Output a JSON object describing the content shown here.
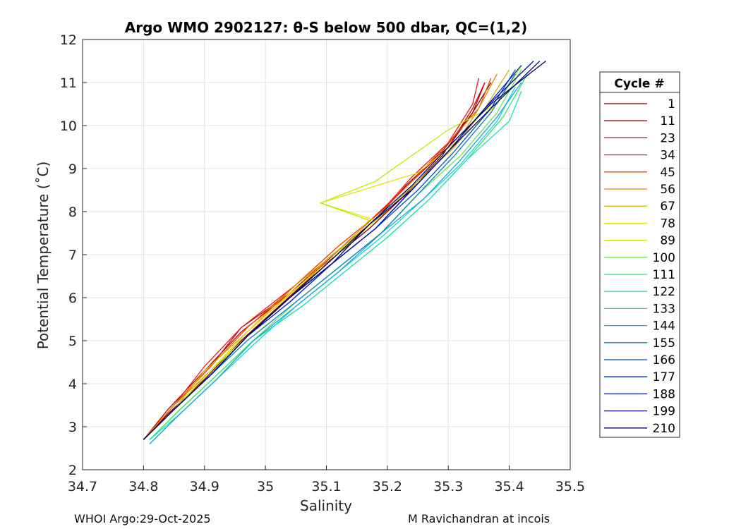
{
  "chart_data": {
    "type": "line",
    "title": "Argo WMO 2902127: θ-S below 500 dbar,  QC=(1,2)",
    "xlabel": "Salinity",
    "ylabel": "Potential Temperature (˚C)",
    "xlim": [
      34.7,
      35.5
    ],
    "ylim": [
      2,
      12
    ],
    "x_ticks": [
      "34.7",
      "34.8",
      "34.9",
      "35",
      "35.1",
      "35.2",
      "35.3",
      "35.4",
      "35.5"
    ],
    "y_ticks": [
      "2",
      "3",
      "4",
      "5",
      "6",
      "7",
      "8",
      "9",
      "10",
      "11",
      "12"
    ],
    "grid": true,
    "legend": {
      "title": "Cycle #",
      "position": "right-outside",
      "entries": [
        {
          "label": "1",
          "color": "#7f0000"
        },
        {
          "label": "11",
          "color": "#b00000"
        },
        {
          "label": "23",
          "color": "#d40000"
        },
        {
          "label": "34",
          "color": "#e31a1c"
        },
        {
          "label": "45",
          "color": "#f04a00"
        },
        {
          "label": "56",
          "color": "#e08a00"
        },
        {
          "label": "67",
          "color": "#d6b400"
        },
        {
          "label": "78",
          "color": "#e6e600"
        },
        {
          "label": "89",
          "color": "#b4f000"
        },
        {
          "label": "100",
          "color": "#66e44a"
        },
        {
          "label": "111",
          "color": "#2ee66e"
        },
        {
          "label": "122",
          "color": "#1ee0b4"
        },
        {
          "label": "133",
          "color": "#19d2e6"
        },
        {
          "label": "144",
          "color": "#10a8d8"
        },
        {
          "label": "155",
          "color": "#0b7dbf"
        },
        {
          "label": "166",
          "color": "#0a50b8"
        },
        {
          "label": "177",
          "color": "#0025cc"
        },
        {
          "label": "188",
          "color": "#000fa8"
        },
        {
          "label": "199",
          "color": "#00007f"
        },
        {
          "label": "210",
          "color": "#00005a"
        }
      ]
    },
    "series": [
      {
        "name": "1",
        "x": [
          34.8,
          34.84,
          34.9,
          34.96,
          35.03,
          35.1,
          35.17,
          35.23,
          35.29,
          35.34,
          35.37
        ],
        "y": [
          2.7,
          3.3,
          4.1,
          5.0,
          5.9,
          6.8,
          7.6,
          8.4,
          9.3,
          10.3,
          11.0
        ]
      },
      {
        "name": "11",
        "x": [
          34.8,
          34.84,
          34.9,
          34.96,
          35.04,
          35.11,
          35.18,
          35.23,
          35.29,
          35.34,
          35.36
        ],
        "y": [
          2.7,
          3.4,
          4.3,
          5.2,
          6.1,
          7.0,
          7.8,
          8.6,
          9.4,
          10.3,
          11.0
        ]
      },
      {
        "name": "23",
        "x": [
          34.8,
          34.85,
          34.91,
          34.96,
          35.05,
          35.12,
          35.18,
          35.24,
          35.3,
          35.34,
          35.36
        ],
        "y": [
          2.7,
          3.5,
          4.4,
          5.3,
          6.2,
          7.1,
          7.9,
          8.7,
          9.5,
          10.4,
          11.0
        ]
      },
      {
        "name": "34",
        "x": [
          34.8,
          34.85,
          34.9,
          34.96,
          35.05,
          35.12,
          35.19,
          35.24,
          35.3,
          35.34,
          35.35
        ],
        "y": [
          2.7,
          3.5,
          4.4,
          5.3,
          6.3,
          7.2,
          8.0,
          8.8,
          9.6,
          10.5,
          11.1
        ]
      },
      {
        "name": "45",
        "x": [
          34.8,
          34.85,
          34.91,
          34.97,
          35.05,
          35.12,
          35.19,
          35.24,
          35.3,
          35.35,
          35.37
        ],
        "y": [
          2.7,
          3.5,
          4.4,
          5.3,
          6.3,
          7.2,
          8.0,
          8.7,
          9.6,
          10.4,
          11.1
        ]
      },
      {
        "name": "56",
        "x": [
          34.8,
          34.85,
          34.91,
          34.97,
          35.05,
          35.12,
          35.19,
          35.25,
          35.31,
          35.35,
          35.38
        ],
        "y": [
          2.7,
          3.5,
          4.3,
          5.2,
          6.3,
          7.1,
          7.9,
          8.7,
          9.5,
          10.4,
          11.2
        ]
      },
      {
        "name": "67",
        "x": [
          34.8,
          34.85,
          34.9,
          34.97,
          35.05,
          35.11,
          35.19,
          35.25,
          35.31,
          35.36,
          35.4
        ],
        "y": [
          2.7,
          3.4,
          4.3,
          5.2,
          6.2,
          7.0,
          7.9,
          8.7,
          9.5,
          10.4,
          11.3
        ]
      },
      {
        "name": "78",
        "x": [
          34.8,
          34.85,
          34.91,
          34.97,
          35.04,
          35.11,
          35.18,
          35.09,
          35.25,
          35.32,
          35.38,
          35.42
        ],
        "y": [
          2.7,
          3.4,
          4.3,
          5.2,
          6.1,
          6.9,
          7.8,
          8.2,
          8.9,
          9.7,
          10.5,
          11.4
        ]
      },
      {
        "name": "89",
        "x": [
          34.8,
          34.85,
          34.91,
          34.97,
          35.04,
          35.11,
          35.17,
          35.09,
          35.18,
          35.3,
          35.38,
          35.42
        ],
        "y": [
          2.7,
          3.4,
          4.3,
          5.1,
          6.0,
          6.9,
          7.8,
          8.2,
          8.7,
          9.9,
          10.5,
          11.4
        ]
      },
      {
        "name": "100",
        "x": [
          34.81,
          34.86,
          34.92,
          34.98,
          35.05,
          35.12,
          35.19,
          35.25,
          35.32,
          35.38,
          35.42
        ],
        "y": [
          2.7,
          3.4,
          4.2,
          5.0,
          5.9,
          6.7,
          7.5,
          8.4,
          9.3,
          10.3,
          11.3
        ]
      },
      {
        "name": "111",
        "x": [
          34.81,
          34.86,
          34.92,
          34.98,
          35.06,
          35.13,
          35.2,
          35.27,
          35.33,
          35.39,
          35.43
        ],
        "y": [
          2.7,
          3.4,
          4.2,
          5.0,
          5.8,
          6.6,
          7.4,
          8.3,
          9.2,
          10.2,
          11.2
        ]
      },
      {
        "name": "122",
        "x": [
          34.81,
          34.86,
          34.92,
          34.98,
          35.06,
          35.13,
          35.2,
          35.27,
          35.33,
          35.4,
          35.42
        ],
        "y": [
          2.7,
          3.3,
          4.1,
          5.0,
          5.8,
          6.6,
          7.4,
          8.3,
          9.2,
          10.1,
          10.8
        ]
      },
      {
        "name": "133",
        "x": [
          34.81,
          34.86,
          34.92,
          34.98,
          35.05,
          35.12,
          35.19,
          35.26,
          35.32,
          35.38,
          35.41
        ],
        "y": [
          2.6,
          3.3,
          4.1,
          4.9,
          5.8,
          6.6,
          7.4,
          8.3,
          9.1,
          10.1,
          10.9
        ]
      },
      {
        "name": "144",
        "x": [
          34.81,
          34.86,
          34.92,
          34.98,
          35.05,
          35.12,
          35.19,
          35.26,
          35.32,
          35.38,
          35.42
        ],
        "y": [
          2.6,
          3.3,
          4.1,
          5.0,
          5.8,
          6.6,
          7.5,
          8.3,
          9.2,
          10.2,
          11.0
        ]
      },
      {
        "name": "155",
        "x": [
          34.8,
          34.85,
          34.91,
          34.97,
          35.05,
          35.12,
          35.19,
          35.25,
          35.31,
          35.37,
          35.41
        ],
        "y": [
          2.7,
          3.4,
          4.2,
          5.0,
          5.9,
          6.7,
          7.5,
          8.4,
          9.3,
          10.3,
          11.2
        ]
      },
      {
        "name": "166",
        "x": [
          34.8,
          34.85,
          34.91,
          34.97,
          35.04,
          35.11,
          35.18,
          35.25,
          35.31,
          35.37,
          35.41
        ],
        "y": [
          2.7,
          3.4,
          4.2,
          5.1,
          5.9,
          6.8,
          7.6,
          8.5,
          9.4,
          10.4,
          11.3
        ]
      },
      {
        "name": "177",
        "x": [
          34.8,
          34.85,
          34.91,
          34.97,
          35.04,
          35.11,
          35.18,
          35.24,
          35.3,
          35.36,
          35.42
        ],
        "y": [
          2.7,
          3.4,
          4.2,
          5.1,
          5.9,
          6.8,
          7.6,
          8.5,
          9.4,
          10.4,
          11.4
        ]
      },
      {
        "name": "188",
        "x": [
          34.8,
          34.85,
          34.91,
          34.97,
          35.04,
          35.11,
          35.18,
          35.24,
          35.3,
          35.36,
          35.44
        ],
        "y": [
          2.7,
          3.4,
          4.2,
          5.1,
          6.0,
          6.8,
          7.6,
          8.5,
          9.4,
          10.4,
          11.5
        ]
      },
      {
        "name": "199",
        "x": [
          34.8,
          34.85,
          34.91,
          34.97,
          35.04,
          35.11,
          35.17,
          35.24,
          35.3,
          35.37,
          35.45
        ],
        "y": [
          2.7,
          3.4,
          4.2,
          5.1,
          6.0,
          6.8,
          7.7,
          8.5,
          9.4,
          10.4,
          11.5
        ]
      },
      {
        "name": "210",
        "x": [
          34.8,
          34.85,
          34.91,
          34.97,
          35.04,
          35.11,
          35.17,
          35.24,
          35.3,
          35.37,
          35.46
        ],
        "y": [
          2.7,
          3.4,
          4.2,
          5.1,
          6.0,
          6.9,
          7.7,
          8.6,
          9.5,
          10.5,
          11.5
        ]
      }
    ]
  },
  "footer": {
    "left": "WHOI Argo:29-Oct-2025",
    "right": "M Ravichandran at incois"
  }
}
